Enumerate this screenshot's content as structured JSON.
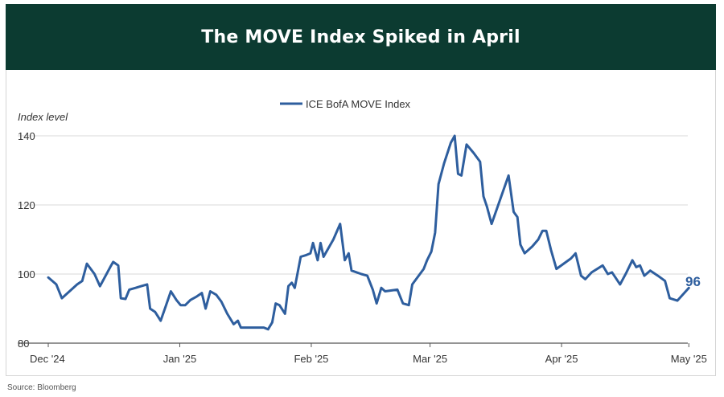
{
  "header": {
    "title": "The MOVE Index Spiked in April"
  },
  "footer": {
    "source": "Source: Bloomberg"
  },
  "colors": {
    "header_bg": "#0c3b31",
    "line": "#2e5e9e",
    "grid": "#d9d9d9",
    "text": "#333333"
  },
  "chart_data": {
    "type": "line",
    "title": "The MOVE Index Spiked in April",
    "ylabel": "Index level",
    "xlabel": "",
    "ylim": [
      80,
      140
    ],
    "yticks": [
      80,
      100,
      120,
      140
    ],
    "xlim": [
      0,
      150
    ],
    "xticks": [
      {
        "x": 0,
        "label": "Dec '24"
      },
      {
        "x": 31,
        "label": "Jan '25"
      },
      {
        "x": 62,
        "label": "Feb '25"
      },
      {
        "x": 90,
        "label": "Mar '25"
      },
      {
        "x": 121,
        "label": "Apr '25"
      },
      {
        "x": 151,
        "label": "May '25"
      }
    ],
    "legend": {
      "label": "ICE BofA MOVE Index",
      "placement": "top-center"
    },
    "end_label": "96",
    "series": [
      {
        "name": "ICE BofA MOVE Index",
        "points": [
          [
            0,
            99
          ],
          [
            1.9,
            97
          ],
          [
            3.2,
            93
          ],
          [
            5,
            95
          ],
          [
            6.8,
            97
          ],
          [
            8,
            98
          ],
          [
            9.1,
            103
          ],
          [
            10.9,
            100
          ],
          [
            12.2,
            96.5
          ],
          [
            14.6,
            102
          ],
          [
            15.3,
            103.5
          ],
          [
            16.5,
            102.5
          ],
          [
            17.1,
            93
          ],
          [
            18.2,
            92.8
          ],
          [
            19.1,
            95.5
          ],
          [
            20.6,
            96
          ],
          [
            21.9,
            96.5
          ],
          [
            23.3,
            97
          ],
          [
            24,
            90
          ],
          [
            25.2,
            89
          ],
          [
            26.5,
            86.5
          ],
          [
            27.5,
            90
          ],
          [
            28.9,
            95
          ],
          [
            30.2,
            92.5
          ],
          [
            31.2,
            91
          ],
          [
            32.3,
            91
          ],
          [
            33.5,
            92.5
          ],
          [
            35,
            93.5
          ],
          [
            36.2,
            94.5
          ],
          [
            37.1,
            90
          ],
          [
            38.2,
            95
          ],
          [
            39.6,
            94
          ],
          [
            40.8,
            92
          ],
          [
            42.2,
            88.5
          ],
          [
            43.7,
            85.5
          ],
          [
            44.7,
            86.5
          ],
          [
            45.4,
            84.5
          ],
          [
            47.5,
            84.5
          ],
          [
            49.5,
            84.5
          ],
          [
            50.8,
            84.5
          ],
          [
            51.8,
            84
          ],
          [
            52.8,
            86
          ],
          [
            53.6,
            91.5
          ],
          [
            54.5,
            91
          ],
          [
            55.8,
            88.5
          ],
          [
            56.6,
            96.5
          ],
          [
            57.4,
            97.5
          ],
          [
            58.1,
            96
          ],
          [
            59.5,
            105
          ],
          [
            60.8,
            105.5
          ],
          [
            61.8,
            106
          ],
          [
            62.4,
            109
          ],
          [
            63.5,
            104
          ],
          [
            64.2,
            109
          ],
          [
            64.9,
            105
          ],
          [
            67.2,
            110
          ],
          [
            68.8,
            114.5
          ],
          [
            69.9,
            104
          ],
          [
            70.8,
            106
          ],
          [
            71.5,
            101
          ],
          [
            73.8,
            100
          ],
          [
            75.2,
            99.5
          ],
          [
            76.5,
            95.5
          ],
          [
            77.4,
            91.5
          ],
          [
            78.5,
            96
          ],
          [
            79.4,
            95
          ],
          [
            82.3,
            95.5
          ],
          [
            83.6,
            91.5
          ],
          [
            85,
            91
          ],
          [
            85.8,
            97
          ],
          [
            88.5,
            101.5
          ],
          [
            89.3,
            104
          ],
          [
            90.3,
            106.5
          ],
          [
            91.2,
            112
          ],
          [
            92,
            126
          ],
          [
            93.3,
            132
          ],
          [
            94.9,
            138
          ],
          [
            95.8,
            140
          ],
          [
            96.6,
            129
          ],
          [
            97.4,
            128.5
          ],
          [
            98.6,
            137.5
          ],
          [
            100.3,
            135
          ],
          [
            101.8,
            132.5
          ],
          [
            102.6,
            122.5
          ],
          [
            103.4,
            119.5
          ],
          [
            104.5,
            114.5
          ],
          [
            108.5,
            128.5
          ],
          [
            109.7,
            118
          ],
          [
            110.6,
            116.5
          ],
          [
            111.3,
            108.5
          ],
          [
            112.3,
            106
          ],
          [
            114.1,
            108
          ],
          [
            115.5,
            110
          ],
          [
            116.5,
            112.5
          ],
          [
            117.4,
            112.5
          ],
          [
            118.5,
            107
          ],
          [
            119.8,
            101.5
          ],
          [
            123.2,
            104.5
          ],
          [
            124.3,
            106
          ],
          [
            125.6,
            99.5
          ],
          [
            126.6,
            98.5
          ],
          [
            128.1,
            100.5
          ],
          [
            130.7,
            102.5
          ],
          [
            131.9,
            100
          ],
          [
            132.9,
            100.5
          ],
          [
            134.8,
            97
          ],
          [
            136.3,
            100.5
          ],
          [
            137.7,
            104
          ],
          [
            138.6,
            102
          ],
          [
            139.5,
            102.5
          ],
          [
            140.5,
            99.5
          ],
          [
            141.9,
            101
          ],
          [
            143.7,
            99.5
          ],
          [
            145.4,
            98
          ],
          [
            146.5,
            93
          ],
          [
            148.3,
            92.3
          ],
          [
            151,
            96
          ]
        ]
      }
    ]
  }
}
